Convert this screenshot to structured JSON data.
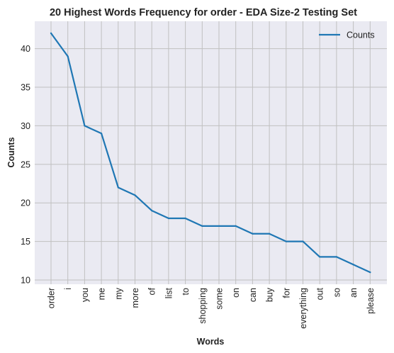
{
  "chart_data": {
    "type": "line",
    "title": "20 Highest Words Frequency for order - EDA Size-2 Testing Set",
    "xlabel": "Words",
    "ylabel": "Counts",
    "categories": [
      "order",
      "i",
      "you",
      "me",
      "my",
      "more",
      "of",
      "list",
      "to",
      "shopping",
      "some",
      "on",
      "can",
      "buy",
      "for",
      "everything",
      "out",
      "so",
      "an",
      "please"
    ],
    "series": [
      {
        "name": "Counts",
        "values": [
          42,
          39,
          30,
          29,
          22,
          21,
          19,
          18,
          18,
          17,
          17,
          17,
          16,
          16,
          15,
          15,
          13,
          13,
          12,
          11
        ],
        "color": "#1f77b4"
      }
    ],
    "yticks": [
      10,
      15,
      20,
      25,
      30,
      35,
      40
    ],
    "ylim": [
      9.45,
      43.55
    ],
    "grid": true,
    "legend_position": "top-right",
    "background_color": "#eaeaf2",
    "grid_color": "#c0c0c0"
  }
}
